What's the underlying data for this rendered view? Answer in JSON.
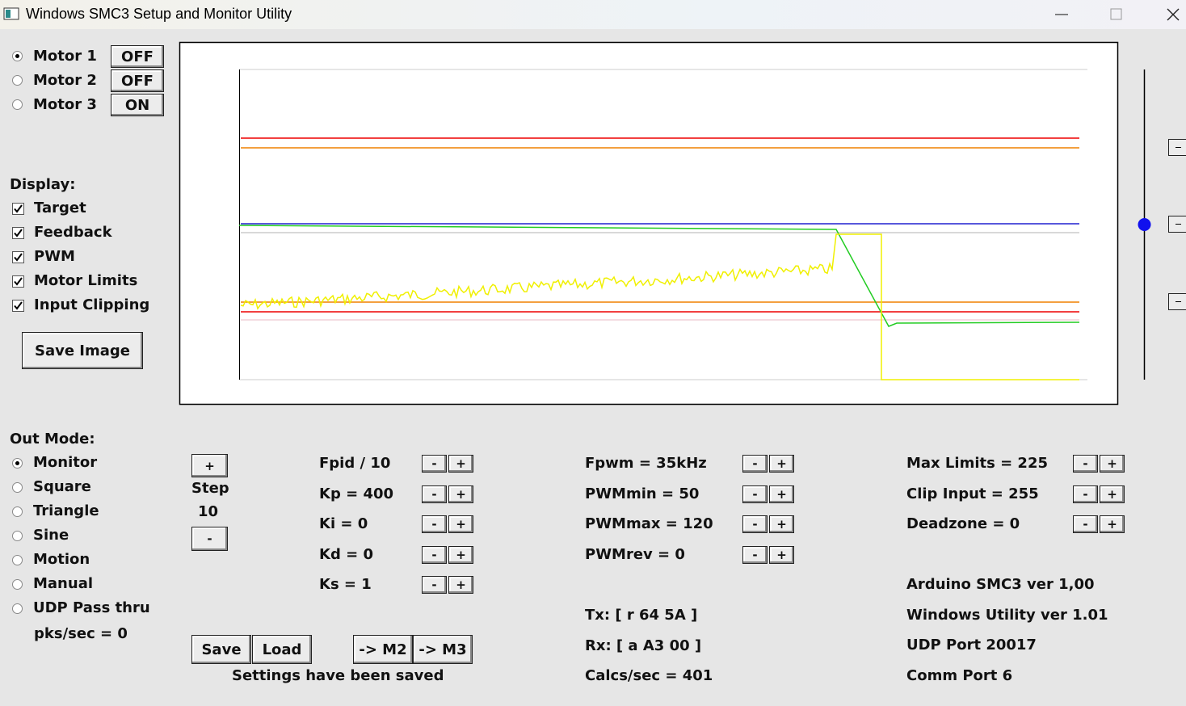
{
  "window": {
    "title": "Windows SMC3 Setup and Monitor Utility"
  },
  "motors": [
    {
      "label": "Motor 1",
      "state": "OFF",
      "selected": true
    },
    {
      "label": "Motor 2",
      "state": "OFF",
      "selected": false
    },
    {
      "label": "Motor 3",
      "state": "ON",
      "selected": false
    }
  ],
  "display": {
    "heading": "Display:",
    "options": [
      "Target",
      "Feedback",
      "PWM",
      "Motor Limits",
      "Input Clipping"
    ]
  },
  "save_image": "Save Image",
  "out_mode": {
    "heading": "Out Mode:",
    "options": [
      "Monitor",
      "Square",
      "Triangle",
      "Sine",
      "Motion",
      "Manual",
      "UDP Pass thru"
    ],
    "selected": 0,
    "rate": "pks/sec = 0"
  },
  "step": {
    "plus": "+",
    "label": "Step",
    "value": 10,
    "minus": "-"
  },
  "adjust": {
    "minus": "-",
    "plus": "+"
  },
  "pid_params": [
    "Fpid / 10",
    "Kp = 400",
    "Ki = 0",
    "Kd = 0",
    "Ks = 1"
  ],
  "pwm_params": [
    "Fpwm = 35kHz",
    "PWMmin = 50",
    "PWMmax = 120",
    "PWMrev = 0"
  ],
  "limit_params": [
    "Max Limits = 225",
    "Clip Input = 255",
    "Deadzone = 0"
  ],
  "buttons": [
    "Save",
    "Load",
    "-> M2",
    "-> M3"
  ],
  "status": "Settings have been saved",
  "comm": [
    "Tx: [ r 64 5A ]",
    "Rx: [ a A3 00 ]",
    "Calcs/sec = 401"
  ],
  "info": [
    "Arduino SMC3 ver 1,00",
    "Windows Utility ver 1.01",
    "UDP Port 20017",
    "Comm Port 6"
  ]
}
